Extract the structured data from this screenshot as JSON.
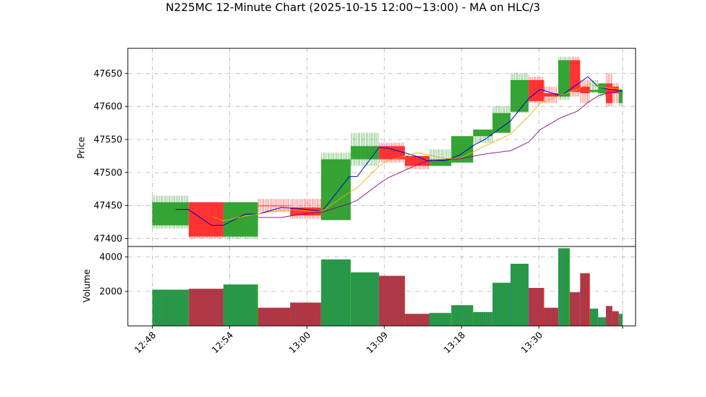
{
  "chart_data": {
    "type": "candlestick",
    "title": "N225MC 12-Minute Chart (2025-10-15 12:00~13:00) - MA on HLC/3",
    "price_panel": {
      "ylabel": "Price",
      "ylim": [
        47388,
        47688
      ],
      "yticks": [
        47400,
        47450,
        47500,
        47550,
        47600,
        47650
      ],
      "grid": true
    },
    "volume_panel": {
      "ylabel": "Volume",
      "ylim": [
        0,
        4600
      ],
      "yticks": [
        2000,
        4000
      ],
      "grid": true
    },
    "xticks": [
      {
        "label": "12:48",
        "x": 0
      },
      {
        "label": "12:54",
        "x": 6
      },
      {
        "label": "13:00",
        "x": 12
      },
      {
        "label": "13:09",
        "x": 18
      },
      {
        "label": "13:18",
        "x": 24
      },
      {
        "label": "13:30",
        "x": 30
      }
    ],
    "xlim": [
      -1.9,
      37.5
    ],
    "candles": [
      {
        "x0": 0.0,
        "x1": 2.83,
        "open": 47420,
        "high": 47465,
        "low": 47415,
        "close": 47455,
        "volume": 2100,
        "color": "green"
      },
      {
        "x0": 2.83,
        "x1": 5.52,
        "open": 47455,
        "high": 47455,
        "low": 47400,
        "close": 47403,
        "volume": 2150,
        "color": "red"
      },
      {
        "x0": 5.52,
        "x1": 8.2,
        "open": 47403,
        "high": 47455,
        "low": 47400,
        "close": 47455,
        "volume": 2400,
        "color": "green"
      },
      {
        "x0": 8.2,
        "x1": 10.7,
        "open": 47450,
        "high": 47460,
        "low": 47440,
        "close": 47450,
        "volume": 1050,
        "color": "red"
      },
      {
        "x0": 10.7,
        "x1": 13.1,
        "open": 47447,
        "high": 47460,
        "low": 47430,
        "close": 47435,
        "volume": 1350,
        "color": "red"
      },
      {
        "x0": 13.1,
        "x1": 15.4,
        "open": 47428,
        "high": 47530,
        "low": 47428,
        "close": 47520,
        "volume": 3850,
        "color": "green"
      },
      {
        "x0": 15.4,
        "x1": 17.6,
        "open": 47520,
        "high": 47560,
        "low": 47510,
        "close": 47540,
        "volume": 3100,
        "color": "green"
      },
      {
        "x0": 17.6,
        "x1": 19.6,
        "open": 47540,
        "high": 47545,
        "low": 47515,
        "close": 47520,
        "volume": 2900,
        "color": "red"
      },
      {
        "x0": 19.6,
        "x1": 21.5,
        "open": 47525,
        "high": 47525,
        "low": 47505,
        "close": 47510,
        "volume": 700,
        "color": "red"
      },
      {
        "x0": 21.5,
        "x1": 23.2,
        "open": 47510,
        "high": 47535,
        "low": 47510,
        "close": 47520,
        "volume": 750,
        "color": "green"
      },
      {
        "x0": 23.2,
        "x1": 24.9,
        "open": 47515,
        "high": 47555,
        "low": 47515,
        "close": 47555,
        "volume": 1200,
        "color": "green"
      },
      {
        "x0": 24.9,
        "x1": 26.4,
        "open": 47555,
        "high": 47565,
        "low": 47545,
        "close": 47565,
        "volume": 800,
        "color": "green"
      },
      {
        "x0": 26.4,
        "x1": 27.8,
        "open": 47560,
        "high": 47600,
        "low": 47560,
        "close": 47590,
        "volume": 2500,
        "color": "green"
      },
      {
        "x0": 27.8,
        "x1": 29.2,
        "open": 47592,
        "high": 47650,
        "low": 47590,
        "close": 47640,
        "volume": 3600,
        "color": "green"
      },
      {
        "x0": 29.2,
        "x1": 30.4,
        "open": 47640,
        "high": 47645,
        "low": 47605,
        "close": 47608,
        "volume": 2200,
        "color": "red"
      },
      {
        "x0": 30.4,
        "x1": 31.5,
        "open": 47620,
        "high": 47630,
        "low": 47605,
        "close": 47615,
        "volume": 1050,
        "color": "red"
      },
      {
        "x0": 31.5,
        "x1": 32.4,
        "open": 47615,
        "high": 47675,
        "low": 47610,
        "close": 47670,
        "volume": 4500,
        "color": "green"
      },
      {
        "x0": 32.4,
        "x1": 33.2,
        "open": 47670,
        "high": 47675,
        "low": 47615,
        "close": 47622,
        "volume": 1950,
        "color": "red"
      },
      {
        "x0": 33.2,
        "x1": 33.95,
        "open": 47620,
        "high": 47640,
        "low": 47605,
        "close": 47630,
        "volume": 3050,
        "color": "red"
      },
      {
        "x0": 33.95,
        "x1": 34.6,
        "open": 47622,
        "high": 47640,
        "low": 47620,
        "close": 47625,
        "volume": 1000,
        "color": "green"
      },
      {
        "x0": 34.6,
        "x1": 35.2,
        "open": 47620,
        "high": 47635,
        "low": 47615,
        "close": 47635,
        "volume": 500,
        "color": "green"
      },
      {
        "x0": 35.2,
        "x1": 35.7,
        "open": 47635,
        "high": 47650,
        "low": 47600,
        "close": 47605,
        "volume": 1150,
        "color": "red"
      },
      {
        "x0": 35.7,
        "x1": 36.2,
        "open": 47630,
        "high": 47635,
        "low": 47605,
        "close": 47620,
        "volume": 850,
        "color": "red"
      },
      {
        "x0": 36.2,
        "x1": 36.5,
        "open": 47625,
        "high": 47625,
        "low": 47600,
        "close": 47605,
        "volume": 700,
        "color": "green"
      }
    ],
    "series": [
      {
        "color": "#0000cc",
        "points": [
          [
            1.8,
            47444
          ],
          [
            2.8,
            47444
          ],
          [
            4.6,
            47420
          ],
          [
            5.5,
            47420
          ],
          [
            7.2,
            47437
          ],
          [
            8.2,
            47437
          ],
          [
            10.0,
            47447
          ],
          [
            11.0,
            47446
          ],
          [
            12.8,
            47442
          ],
          [
            13.2,
            47442
          ],
          [
            15.3,
            47494
          ],
          [
            15.9,
            47494
          ],
          [
            17.6,
            47538
          ],
          [
            18.3,
            47537
          ],
          [
            20.6,
            47524
          ],
          [
            21.3,
            47518
          ],
          [
            22.8,
            47518
          ],
          [
            23.9,
            47527
          ],
          [
            25.0,
            47542
          ],
          [
            25.8,
            47550
          ],
          [
            27.8,
            47578
          ],
          [
            29.2,
            47612
          ],
          [
            30.1,
            47626
          ],
          [
            31.7,
            47616
          ],
          [
            33.0,
            47634
          ],
          [
            33.8,
            47645
          ],
          [
            34.6,
            47630
          ],
          [
            35.4,
            47626
          ],
          [
            36.5,
            47624
          ]
        ]
      },
      {
        "color": "#ffa500",
        "points": [
          [
            4.6,
            47434
          ],
          [
            5.5,
            47427
          ],
          [
            7.2,
            47434
          ],
          [
            8.2,
            47437
          ],
          [
            10.0,
            47443
          ],
          [
            11.0,
            47443
          ],
          [
            12.8,
            47441
          ],
          [
            13.2,
            47442
          ],
          [
            15.3,
            47470
          ],
          [
            15.9,
            47477
          ],
          [
            17.6,
            47510
          ],
          [
            18.3,
            47518
          ],
          [
            20.6,
            47530
          ],
          [
            21.3,
            47527
          ],
          [
            22.8,
            47521
          ],
          [
            23.9,
            47522
          ],
          [
            25.0,
            47532
          ],
          [
            25.8,
            47540
          ],
          [
            27.8,
            47558
          ],
          [
            29.2,
            47585
          ],
          [
            30.1,
            47605
          ],
          [
            31.7,
            47617
          ],
          [
            33.0,
            47626
          ],
          [
            33.8,
            47634
          ],
          [
            34.6,
            47630
          ],
          [
            35.4,
            47628
          ],
          [
            36.5,
            47626
          ]
        ]
      },
      {
        "color": "#800080",
        "points": [
          [
            8.2,
            47432
          ],
          [
            10.0,
            47432
          ],
          [
            11.0,
            47435
          ],
          [
            12.8,
            47440
          ],
          [
            13.2,
            47440
          ],
          [
            15.3,
            47453
          ],
          [
            15.9,
            47458
          ],
          [
            17.6,
            47483
          ],
          [
            18.3,
            47492
          ],
          [
            20.6,
            47512
          ],
          [
            21.3,
            47517
          ],
          [
            22.8,
            47520
          ],
          [
            23.9,
            47521
          ],
          [
            25.0,
            47525
          ],
          [
            25.8,
            47528
          ],
          [
            27.8,
            47533
          ],
          [
            29.2,
            47546
          ],
          [
            30.1,
            47565
          ],
          [
            31.7,
            47583
          ],
          [
            33.0,
            47593
          ],
          [
            33.8,
            47606
          ],
          [
            34.6,
            47616
          ],
          [
            35.4,
            47621
          ],
          [
            36.5,
            47623
          ]
        ]
      }
    ],
    "colors": {
      "up": "#2ca02c",
      "down": "#ff2a2a",
      "volume_up": "#2ca02c",
      "volume_down": "#d62728",
      "volume_stripe": "#1f77b4",
      "grid": "#b0b0b0"
    }
  }
}
